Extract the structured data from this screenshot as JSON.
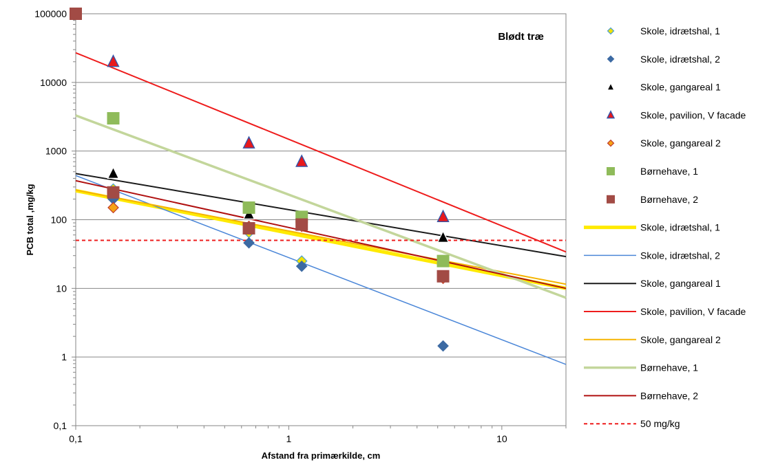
{
  "chart_data": {
    "type": "scatter",
    "title": "",
    "annotation": "Blødt træ",
    "xlabel": "Afstand fra primærkilde, cm",
    "ylabel": "PCB total ,mg/kg",
    "xscale": "log",
    "yscale": "log",
    "xlim": [
      0.1,
      20
    ],
    "ylim": [
      0.1,
      100000
    ],
    "x_ticks": [
      0.1,
      1,
      10
    ],
    "x_tick_labels": [
      "0,1",
      "1",
      "10"
    ],
    "y_ticks": [
      0.1,
      1,
      10,
      100,
      1000,
      10000,
      100000
    ],
    "y_tick_labels": [
      "0,1",
      "1",
      "10",
      "100",
      "1000",
      "10000",
      "100000"
    ],
    "grid": "horizontal major",
    "legend_position": "right",
    "series": [
      {
        "name": "Skole, idrætshal, 1",
        "kind": "points",
        "marker": "diamond",
        "fill": "#f2e200",
        "stroke": "#4a9fd6",
        "x": [
          0.15,
          0.65,
          1.15
        ],
        "y": [
          280,
          65,
          25
        ]
      },
      {
        "name": "Skole, idrætshal, 2",
        "kind": "points",
        "marker": "diamond",
        "fill": "#3c6aa3",
        "stroke": "#3c6aa3",
        "x": [
          0.15,
          0.65,
          1.15,
          5.3
        ],
        "y": [
          200,
          46,
          21,
          1.45
        ]
      },
      {
        "name": "Skole, gangareal 1",
        "kind": "points",
        "marker": "triangle",
        "fill": "#000000",
        "stroke": "#ffffff",
        "x": [
          0.15,
          0.65,
          5.3
        ],
        "y": [
          470,
          120,
          55
        ]
      },
      {
        "name": "Skole, pavilion, V facade",
        "kind": "points",
        "marker": "triangle",
        "fill": "#e8191b",
        "stroke": "#3355aa",
        "x": [
          0.15,
          0.65,
          1.15,
          5.3
        ],
        "y": [
          20000,
          1300,
          700,
          110
        ]
      },
      {
        "name": "Skole, gangareal 2",
        "kind": "points",
        "marker": "diamond",
        "fill": "#f5a316",
        "stroke": "#c0392b",
        "x": [
          0.15,
          0.65,
          1.15,
          5.3
        ],
        "y": [
          150,
          80,
          80,
          14
        ]
      },
      {
        "name": "Børnehave, 1",
        "kind": "points",
        "marker": "square",
        "fill": "#8fbb5a",
        "stroke": "#8fbb5a",
        "x": [
          0.15,
          0.65,
          1.15,
          5.3
        ],
        "y": [
          3000,
          150,
          110,
          25
        ]
      },
      {
        "name": "Børnehave, 2",
        "kind": "points",
        "marker": "square",
        "fill": "#a24b45",
        "stroke": "#a24b45",
        "x": [
          0.1,
          0.15,
          0.65,
          1.15,
          5.3
        ],
        "y": [
          100000,
          250,
          75,
          85,
          15
        ]
      },
      {
        "name": "Skole, idrætshal, 1",
        "kind": "line",
        "color": "#ffea00",
        "width": 5,
        "x": [
          0.1,
          20
        ],
        "y": [
          265,
          10
        ]
      },
      {
        "name": "Skole, idrætshal, 2",
        "kind": "line",
        "color": "#4a86d8",
        "width": 1.5,
        "x": [
          0.1,
          20
        ],
        "y": [
          440,
          0.78
        ]
      },
      {
        "name": "Skole, gangareal 1",
        "kind": "line",
        "color": "#1a1a1a",
        "width": 2,
        "x": [
          0.1,
          20
        ],
        "y": [
          470,
          29
        ]
      },
      {
        "name": "Skole, pavilion, V facade",
        "kind": "line",
        "color": "#ee1c1c",
        "width": 2,
        "x": [
          0.1,
          20
        ],
        "y": [
          27000,
          34
        ]
      },
      {
        "name": "Skole, gangareal 2",
        "kind": "line",
        "color": "#f5b400",
        "width": 2,
        "x": [
          0.1,
          20
        ],
        "y": [
          270,
          11.5
        ]
      },
      {
        "name": "Børnehave, 1",
        "kind": "line",
        "color": "#c3d69b",
        "width": 3.5,
        "x": [
          0.1,
          20
        ],
        "y": [
          3300,
          7.3
        ]
      },
      {
        "name": "Børnehave, 2",
        "kind": "line",
        "color": "#b01010",
        "width": 2,
        "x": [
          0.1,
          20
        ],
        "y": [
          370,
          10
        ]
      },
      {
        "name": "50 mg/kg",
        "kind": "line",
        "dash": true,
        "color": "#ee1c1c",
        "width": 2,
        "x": [
          0.1,
          20
        ],
        "y": [
          50,
          50
        ]
      }
    ]
  }
}
